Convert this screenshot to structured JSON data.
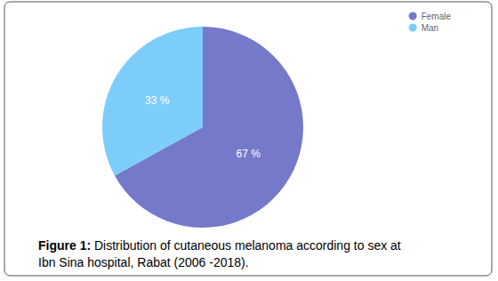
{
  "chart_data": {
    "type": "pie",
    "title": "Figure 1: Distribution of cutaneous melanoma according to sex at Ibn Sina hospital, Rabat (2006 -2018).",
    "categories": [
      "Female",
      "Man"
    ],
    "values": [
      67,
      33
    ],
    "value_labels": [
      "67 %",
      "33 %"
    ],
    "colors": [
      "#7479c9",
      "#7dcdfb"
    ],
    "legend": "top-right",
    "data_labels": true
  }
}
